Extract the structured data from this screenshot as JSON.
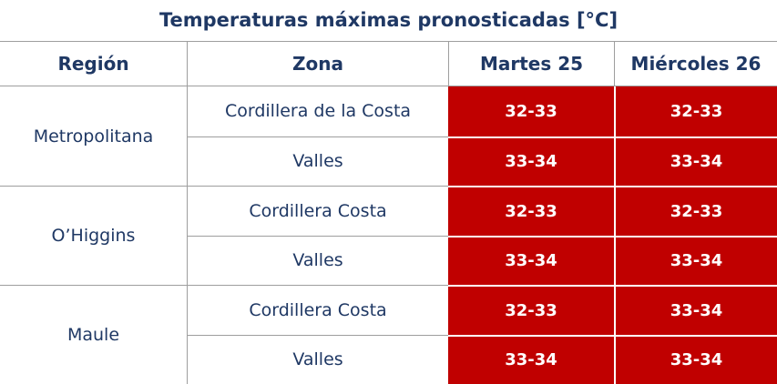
{
  "title": "Temperaturas máximas pronosticadas [°C]",
  "header": [
    "Región",
    "Zona",
    "Martes 25",
    "Miércoles 26"
  ],
  "regions": [
    {
      "region": "Metropolitana",
      "zones": [
        [
          "Cordillera de la Costa",
          "32-33",
          "32-33"
        ],
        [
          "Valles",
          "33-34",
          "33-34"
        ]
      ]
    },
    {
      "region": "O’Higgins",
      "zones": [
        [
          "Cordillera Costa",
          "32-33",
          "32-33"
        ],
        [
          "Valles",
          "33-34",
          "33-34"
        ]
      ]
    },
    {
      "region": "Maule",
      "zones": [
        [
          "Cordillera Costa",
          "32-33",
          "33-34"
        ],
        [
          "Valles",
          "33-34",
          "33-34"
        ]
      ]
    }
  ]
}
